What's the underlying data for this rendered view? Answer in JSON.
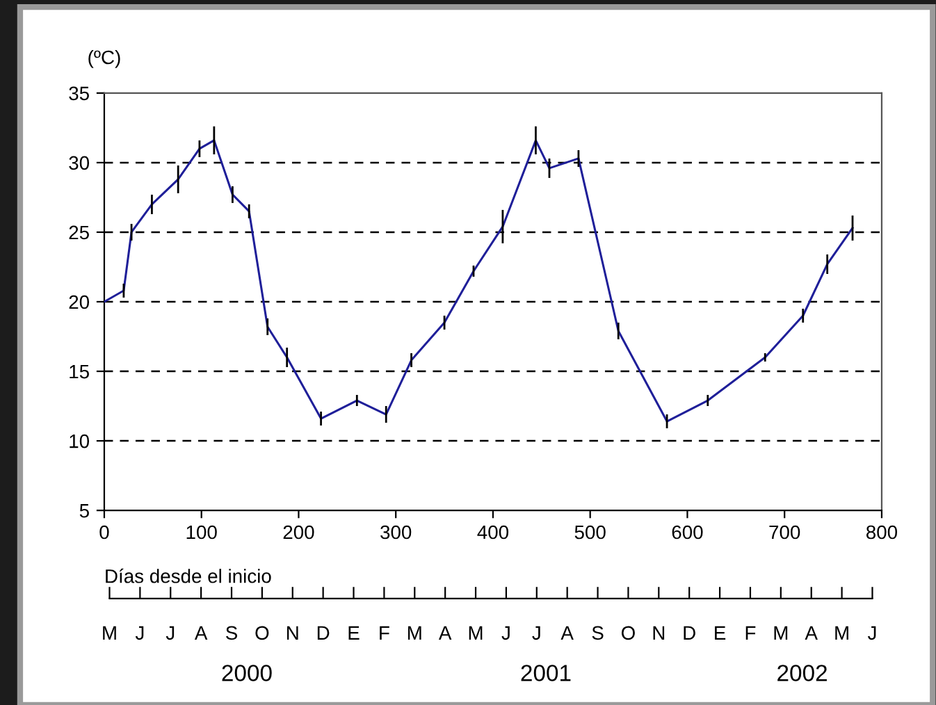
{
  "chart_data": {
    "type": "line",
    "ylabel": "(ºC)",
    "xlabel": "Días desde el inicio",
    "x": [
      0,
      20,
      28,
      49,
      76,
      98,
      113,
      132,
      149,
      168,
      188,
      223,
      260,
      290,
      316,
      350,
      380,
      410,
      444,
      458,
      488,
      529,
      579,
      621,
      680,
      719,
      744,
      770
    ],
    "series": [
      {
        "color": "#1f1f99",
        "values": [
          20.0,
          20.8,
          25.0,
          27.0,
          28.8,
          31.0,
          31.6,
          27.7,
          26.5,
          18.2,
          16.0,
          11.6,
          12.9,
          11.9,
          15.8,
          18.5,
          22.2,
          25.4,
          31.6,
          29.6,
          30.3,
          17.9,
          11.4,
          12.9,
          16.0,
          19.0,
          22.7,
          25.3
        ],
        "errors": [
          null,
          0.5,
          0.6,
          0.7,
          1.0,
          0.6,
          1.0,
          0.6,
          0.5,
          0.6,
          0.7,
          0.5,
          0.4,
          0.6,
          0.5,
          0.5,
          0.4,
          1.2,
          1.0,
          0.7,
          0.6,
          0.6,
          0.5,
          0.4,
          0.3,
          0.5,
          0.7,
          0.9
        ]
      }
    ],
    "xlim": [
      0,
      800
    ],
    "xticks": [
      0,
      100,
      200,
      300,
      400,
      500,
      600,
      700,
      800
    ],
    "ylim": [
      5,
      35
    ],
    "yticks": [
      5,
      10,
      15,
      20,
      25,
      30,
      35
    ],
    "annotations": [
      "M",
      "J",
      "J",
      "A",
      "S",
      "O",
      "N",
      "D",
      "E",
      "F",
      "M",
      "A",
      "M",
      "J",
      "J",
      "A",
      "S",
      "O",
      "N",
      "D",
      "E",
      "F",
      "M",
      "A",
      "M",
      "J",
      "2000",
      "2001",
      "2002"
    ],
    "grid": "y",
    "line_style": "solid",
    "marker": "none",
    "legend": false
  }
}
